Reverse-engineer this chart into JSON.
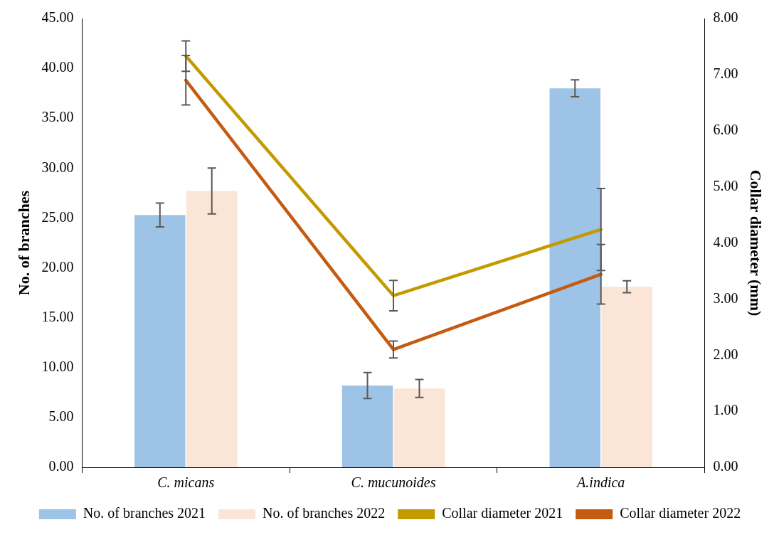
{
  "chart_data": {
    "type": "bar",
    "xlabel": null,
    "ylabel": "No. of branches",
    "y2label": "Collar diameter (mm)",
    "categories": [
      "C. micans",
      "C. mucunoides",
      "A.indica"
    ],
    "series": [
      {
        "name": "No. of branches 2021",
        "color": "#9dc3e6",
        "values": [
          25.3,
          8.2,
          38.0
        ],
        "errors": [
          1.2,
          1.3,
          0.85
        ]
      },
      {
        "name": "No. of branches 2022",
        "color": "#fbe5d6",
        "values": [
          27.7,
          7.9,
          18.1
        ],
        "errors": [
          2.3,
          0.9,
          0.6
        ]
      },
      {
        "name": "Collar diameter 2021",
        "type": "line",
        "axis": "y2",
        "color": "#c49a00",
        "values": [
          7.33,
          3.06,
          4.24
        ],
        "errors": [
          0.27,
          0.27,
          0.73
        ]
      },
      {
        "name": "Collar diameter 2022",
        "type": "line",
        "axis": "y2",
        "color": "#c55a11",
        "values": [
          6.9,
          2.1,
          3.44
        ],
        "errors": [
          0.44,
          0.15,
          0.53
        ]
      }
    ],
    "ylim": [
      0,
      45
    ],
    "yticks": [
      {
        "value": 0,
        "label": "0.00"
      },
      {
        "value": 5,
        "label": "5.00"
      },
      {
        "value": 10,
        "label": "10.00"
      },
      {
        "value": 15,
        "label": "15.00"
      },
      {
        "value": 20,
        "label": "20.00"
      },
      {
        "value": 25,
        "label": "25.00"
      },
      {
        "value": 30,
        "label": "30.00"
      },
      {
        "value": 35,
        "label": "35.00"
      },
      {
        "value": 40,
        "label": "40.00"
      },
      {
        "value": 45,
        "label": "45.00"
      }
    ],
    "y2lim": [
      0,
      8
    ],
    "y2ticks": [
      {
        "value": 0,
        "label": "0.00"
      },
      {
        "value": 1,
        "label": "1.00"
      },
      {
        "value": 2,
        "label": "2.00"
      },
      {
        "value": 3,
        "label": "3.00"
      },
      {
        "value": 4,
        "label": "4.00"
      },
      {
        "value": 5,
        "label": "5.00"
      },
      {
        "value": 6,
        "label": "6.00"
      },
      {
        "value": 7,
        "label": "7.00"
      },
      {
        "value": 8,
        "label": "8.00"
      }
    ],
    "grid": false,
    "legend": "bottom",
    "marker": "none",
    "line_style": "solid"
  }
}
